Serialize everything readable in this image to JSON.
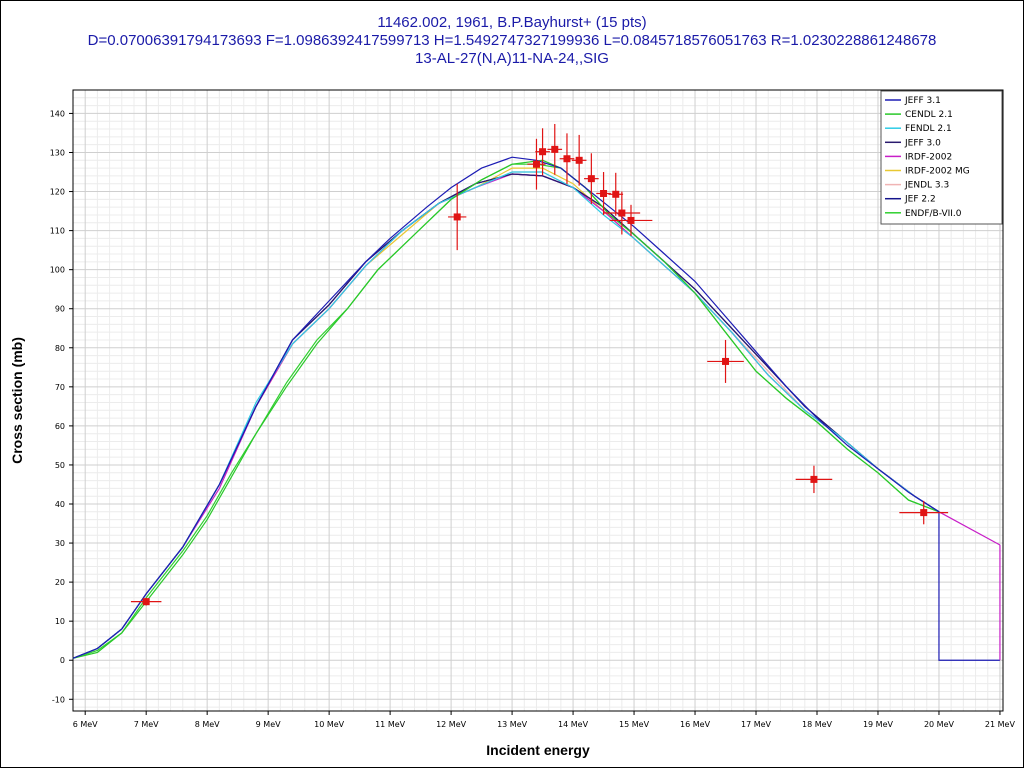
{
  "chart_title": {
    "line1": "11462.002, 1961, B.P.Bayhurst+ (15 pts)",
    "line2": "D=0.07006391794173693 F=1.0986392417599713 H=1.5492747327199936 L=0.0845718576051763 R=1.0230228861248678",
    "line3": "13-AL-27(N,A)11-NA-24,,SIG"
  },
  "chart_data": {
    "type": "line",
    "xlabel": "Incident energy",
    "ylabel": "Cross section (mb)",
    "x_unit_suffix": " MeV",
    "xlim": [
      5.8,
      21.05
    ],
    "ylim": [
      -13,
      146
    ],
    "x_ticks": [
      6,
      7,
      8,
      9,
      10,
      11,
      12,
      13,
      14,
      15,
      16,
      17,
      18,
      19,
      20,
      21
    ],
    "y_ticks": [
      -10,
      0,
      10,
      20,
      30,
      40,
      50,
      60,
      70,
      80,
      90,
      100,
      110,
      120,
      130,
      140
    ],
    "grid": true,
    "legend_position": "top-right",
    "series": [
      {
        "name": "JEFF 3.1",
        "color": "#1c1cb4",
        "x": [
          5.8,
          6.2,
          6.6,
          7.0,
          7.6,
          8.2,
          8.8,
          9.4,
          10.0,
          10.6,
          11.0,
          11.6,
          12.0,
          12.5,
          13.0,
          13.4,
          13.8,
          14.2,
          14.6,
          15.0,
          15.5,
          16.0,
          16.5,
          17.0,
          17.5,
          18.0,
          18.5,
          19.0,
          19.5,
          20.0
        ],
        "y": [
          0.5,
          3,
          8,
          17,
          29,
          45,
          65,
          82,
          92,
          102,
          108,
          116,
          121,
          126,
          128.8,
          128,
          126,
          121,
          116,
          111,
          104,
          97,
          88,
          79,
          70,
          62,
          55,
          49,
          43,
          38
        ]
      },
      {
        "name": "CENDL 2.1",
        "color": "#2ac82a",
        "x": [
          5.8,
          6.2,
          6.6,
          7.0,
          7.6,
          8.0,
          8.4,
          8.8,
          9.3,
          9.8,
          10.3,
          10.8,
          11.4,
          12.0,
          12.5,
          13.0,
          13.5,
          13.8,
          14.2,
          14.6,
          15.0,
          15.5,
          16.0,
          16.5,
          17.0,
          17.5,
          18.0,
          18.5,
          19.0,
          19.5,
          20.0
        ],
        "y": [
          0.5,
          2,
          7,
          15,
          27,
          36,
          47,
          58,
          70,
          81,
          90,
          100,
          109,
          118,
          123,
          127,
          128,
          126,
          121,
          114,
          109,
          102,
          94,
          84,
          74,
          67,
          61,
          54,
          48,
          41,
          38
        ]
      },
      {
        "name": "FENDL 2.1",
        "color": "#2ecce6",
        "x": [
          5.8,
          6.2,
          6.6,
          7.0,
          7.6,
          8.2,
          8.8,
          9.4,
          10.0,
          10.6,
          11.2,
          11.8,
          12.4,
          13.0,
          13.5,
          14.0,
          14.5,
          15.0,
          15.5,
          16.0,
          16.6,
          17.2,
          17.8,
          18.4,
          19.0,
          19.6,
          20.0
        ],
        "y": [
          0.5,
          3,
          8,
          17,
          29,
          45,
          66,
          81,
          90,
          101,
          110,
          117,
          121,
          125,
          125,
          121,
          114,
          108,
          101,
          94,
          84,
          73,
          64,
          57,
          49,
          42,
          38
        ]
      },
      {
        "name": "JEFF 3.0",
        "color": "#2a1a6e",
        "x": [
          5.8,
          6.2,
          6.6,
          7.0,
          7.6,
          8.2,
          8.8,
          9.4,
          10.0,
          10.6,
          11.2,
          11.8,
          12.4,
          13.0,
          13.5,
          14.0,
          14.5,
          15.0,
          15.5,
          16.0,
          16.6,
          17.2,
          17.8,
          18.4,
          19.0,
          19.6,
          20.0
        ],
        "y": [
          0.5,
          3,
          8,
          17,
          29,
          45,
          65,
          82,
          91,
          102,
          110,
          117,
          122,
          124.5,
          124,
          121,
          116,
          109,
          102,
          95,
          85,
          75,
          65,
          57,
          49,
          42,
          38
        ]
      },
      {
        "name": "IRDF-2002",
        "color": "#c81ec8",
        "x": [
          5.8,
          6.2,
          6.6,
          7.0,
          7.6,
          8.2,
          8.8,
          9.4,
          10.0,
          10.6,
          11.2,
          11.8,
          12.4,
          13.0,
          13.5,
          14.0,
          14.5,
          15.0,
          15.5,
          16.0,
          16.6,
          17.2,
          17.8,
          18.4,
          19.0,
          19.6,
          20.0,
          21.0
        ],
        "y": [
          0.5,
          3,
          8,
          17,
          29,
          44,
          65,
          81,
          90,
          101,
          110,
          117,
          121,
          124.5,
          124,
          121,
          115,
          108,
          101,
          94,
          84,
          73,
          64,
          57,
          49,
          42,
          38,
          29.5
        ]
      },
      {
        "name": "IRDF-2002 MG",
        "color": "#e8c832",
        "x": [
          5.8,
          6.2,
          6.6,
          7.0,
          7.6,
          8.2,
          8.8,
          9.4,
          10.0,
          10.6,
          11.2,
          11.8,
          12.4,
          13.0,
          13.5,
          14.0,
          14.5,
          15.0,
          15.5,
          16.0,
          16.6,
          17.2,
          17.8,
          18.4,
          19.0,
          19.6,
          20.0
        ],
        "y": [
          0.5,
          3,
          8,
          17,
          29,
          45,
          65,
          81,
          90,
          101,
          109,
          117,
          121,
          126,
          126,
          122,
          115,
          108,
          101,
          94,
          84,
          73,
          64,
          57,
          49,
          42,
          38
        ]
      },
      {
        "name": "JENDL 3.3",
        "color": "#f0b4b4",
        "x": [
          5.8,
          6.2,
          6.6,
          7.0,
          7.6,
          8.2,
          8.8,
          9.4,
          10.0,
          10.6,
          11.2,
          11.8,
          12.4,
          13.0,
          13.5,
          14.0,
          14.5,
          15.0,
          15.5,
          16.0,
          16.6,
          17.2,
          17.8,
          18.4,
          19.0,
          19.6,
          20.0
        ],
        "y": [
          0.5,
          3,
          8,
          17,
          29,
          45,
          65,
          81,
          90,
          101,
          110,
          117,
          121,
          125,
          125,
          121,
          115,
          108,
          101,
          94,
          84,
          74,
          64,
          57,
          49,
          42,
          38
        ]
      },
      {
        "name": "JEF 2.2",
        "color": "#14148c",
        "x": [
          5.8,
          6.2,
          6.6,
          7.0,
          7.6,
          8.2,
          8.8,
          9.4,
          10.0,
          10.6,
          11.2,
          11.8,
          12.4,
          13.0,
          13.5,
          14.0,
          14.5,
          15.0,
          15.5,
          16.0,
          16.6,
          17.2,
          17.8,
          18.4,
          19.0,
          19.6,
          20.0
        ],
        "y": [
          0.5,
          3,
          8,
          17,
          29,
          45,
          65,
          82,
          91,
          102,
          110,
          117,
          122,
          124.5,
          124,
          121,
          116,
          109,
          102,
          95,
          85,
          75,
          65,
          57,
          49,
          42,
          38
        ]
      },
      {
        "name": "ENDF/B-VII.0",
        "color": "#30d030",
        "x": [
          5.8,
          6.2,
          6.6,
          7.0,
          7.6,
          8.0,
          8.4,
          8.8,
          9.3,
          9.8,
          10.3,
          10.8,
          11.4,
          12.0,
          12.5,
          13.0,
          13.4,
          13.8,
          14.2,
          14.6,
          15.0,
          15.5,
          16.0,
          16.5,
          17.0,
          17.5,
          18.0,
          18.5,
          19.0,
          19.5,
          20.0
        ],
        "y": [
          0.5,
          2.5,
          7,
          16,
          28,
          37,
          48,
          58,
          71,
          82,
          90,
          100,
          109,
          118,
          123,
          127,
          127,
          126,
          121,
          114,
          109,
          102,
          94,
          84,
          74,
          67,
          61,
          54,
          48,
          41,
          38
        ]
      }
    ],
    "measurements": {
      "color": "#e01414",
      "points": [
        {
          "x": 7.0,
          "y": 15.0,
          "dx": 0.25,
          "dy": 1.0
        },
        {
          "x": 12.1,
          "y": 113.5,
          "dx": 0.15,
          "dy": 8.5
        },
        {
          "x": 13.4,
          "y": 127.0,
          "dx": 0.15,
          "dy": 6.5
        },
        {
          "x": 13.5,
          "y": 130.2,
          "dx": 0.12,
          "dy": 6.0
        },
        {
          "x": 13.7,
          "y": 130.8,
          "dx": 0.12,
          "dy": 6.5
        },
        {
          "x": 13.9,
          "y": 128.4,
          "dx": 0.12,
          "dy": 6.5
        },
        {
          "x": 14.1,
          "y": 128.0,
          "dx": 0.12,
          "dy": 6.5
        },
        {
          "x": 14.3,
          "y": 123.3,
          "dx": 0.12,
          "dy": 6.5
        },
        {
          "x": 14.5,
          "y": 119.5,
          "dx": 0.12,
          "dy": 5.5
        },
        {
          "x": 14.7,
          "y": 119.3,
          "dx": 0.12,
          "dy": 5.5
        },
        {
          "x": 14.8,
          "y": 114.5,
          "dx": 0.3,
          "dy": 5.5
        },
        {
          "x": 14.95,
          "y": 112.6,
          "dx": 0.35,
          "dy": 4.0
        },
        {
          "x": 16.5,
          "y": 76.5,
          "dx": 0.3,
          "dy": 5.5
        },
        {
          "x": 17.95,
          "y": 46.3,
          "dx": 0.3,
          "dy": 3.5
        },
        {
          "x": 19.75,
          "y": 37.8,
          "dx": 0.4,
          "dy": 3.0
        }
      ]
    }
  }
}
